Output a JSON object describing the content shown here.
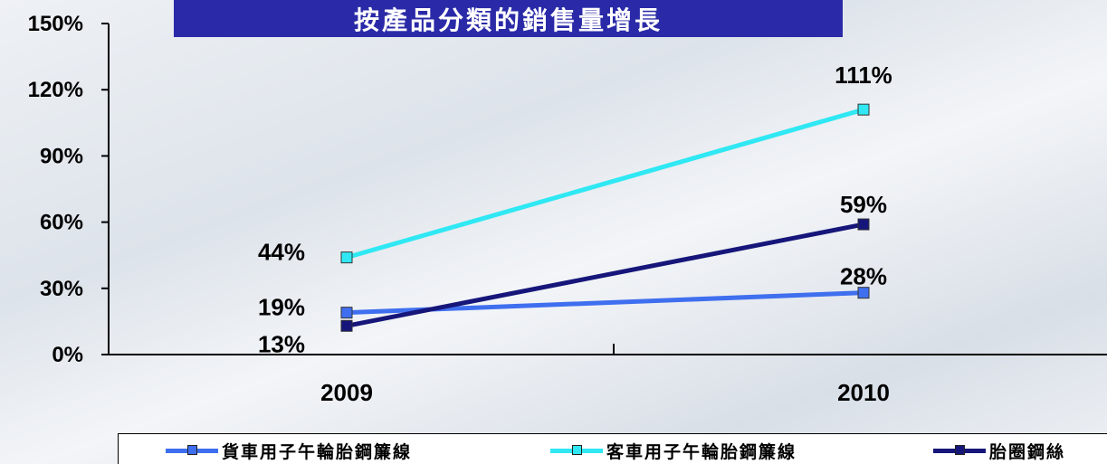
{
  "chart_data": {
    "type": "line",
    "title": "按產品分類的銷售量增長",
    "categories": [
      "2009",
      "2010"
    ],
    "y_unit": "%",
    "ylim": [
      0,
      150
    ],
    "y_ticks": [
      0,
      30,
      60,
      90,
      120,
      150
    ],
    "y_tick_labels": [
      "0%",
      "30%",
      "60%",
      "90%",
      "120%",
      "150%"
    ],
    "grid": false,
    "legend_position": "bottom",
    "series": [
      {
        "name": "貨車用子午輪胎鋼簾線",
        "values": [
          19,
          28
        ],
        "labels": [
          "19%",
          "28%"
        ],
        "color": "#3f6fef"
      },
      {
        "name": "客車用子午輪胎鋼簾線",
        "values": [
          44,
          111
        ],
        "labels": [
          "44%",
          "111%"
        ],
        "color": "#2fe8f3"
      },
      {
        "name": "胎圈鋼絲",
        "values": [
          13,
          59
        ],
        "labels": [
          "13%",
          "59%"
        ],
        "color": "#16167a"
      }
    ]
  }
}
